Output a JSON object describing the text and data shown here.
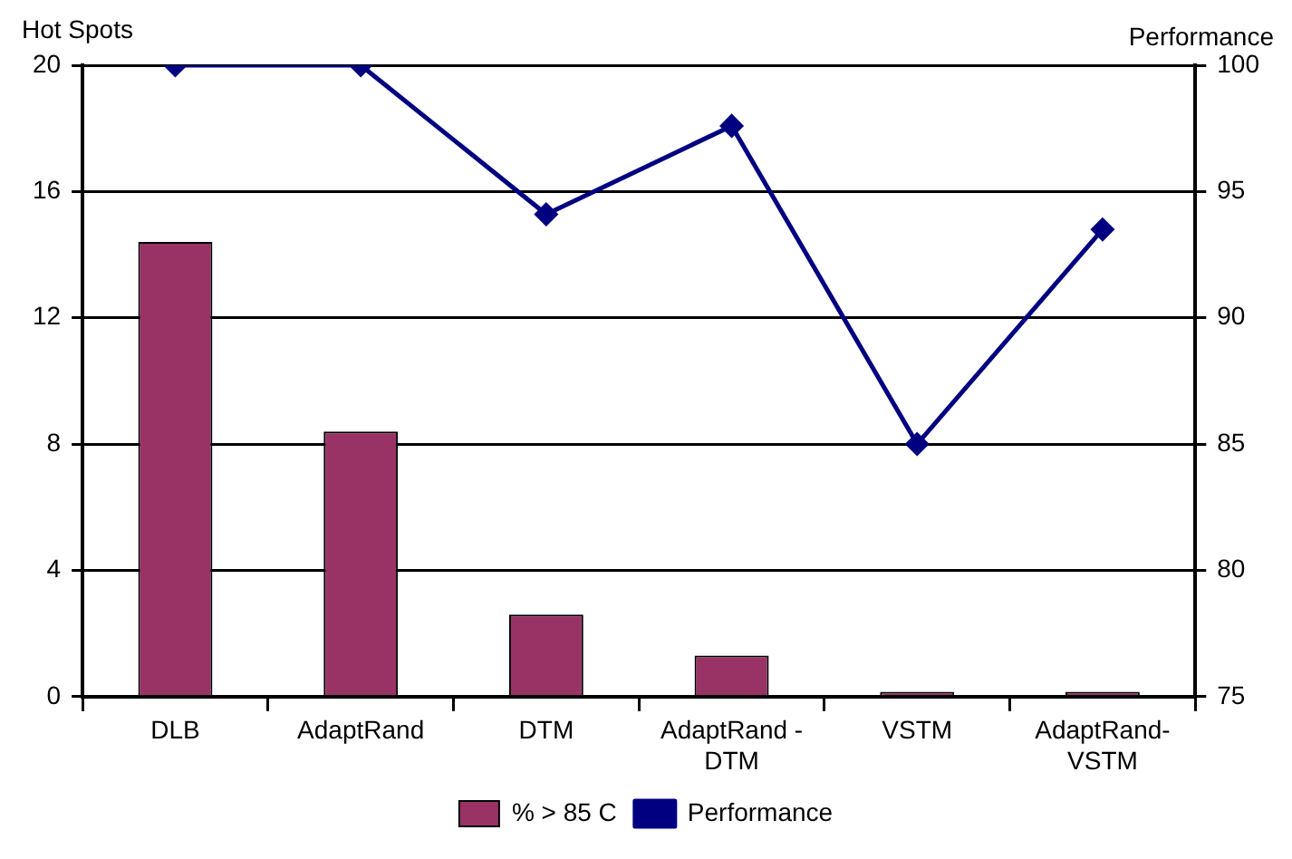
{
  "chart_data": {
    "type": "bar",
    "ylabel": "Hot Spots",
    "y2label": "Performance",
    "categories": [
      "DLB",
      "AdaptRand",
      "DTM",
      "AdaptRand - DTM",
      "VSTM",
      "AdaptRand-VSTM"
    ],
    "series": [
      {
        "name": "% > 85 C",
        "color": "#993366",
        "values": [
          14.4,
          8.4,
          2.6,
          1.3,
          0.15,
          0.15
        ]
      },
      {
        "name": "Performance",
        "type": "line",
        "axis": "y2",
        "color": "#000080",
        "values": [
          100,
          100,
          94.1,
          97.6,
          85,
          93.5
        ]
      }
    ],
    "ylim": [
      0,
      20
    ],
    "yticks": [
      0,
      4,
      8,
      12,
      16,
      20
    ],
    "y2lim": [
      75,
      100
    ],
    "y2ticks": [
      75,
      80,
      85,
      90,
      95,
      100
    ],
    "grid": "y",
    "legend": "bottom",
    "marker": "diamond"
  }
}
